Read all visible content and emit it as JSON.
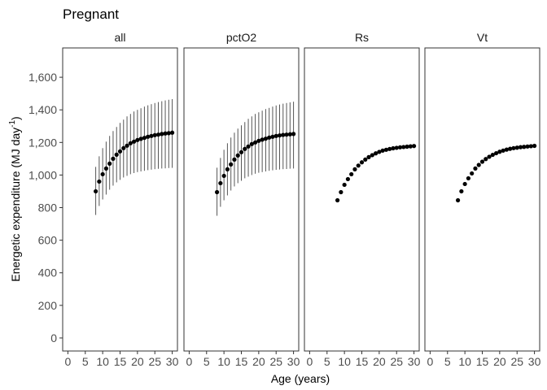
{
  "chart_data": {
    "type": "scatter",
    "title": "Pregnant",
    "xlabel": "Age (years)",
    "ylabel_main": "Energetic expenditure (MJ day",
    "ylabel_sup": "-1",
    "ylabel_close": ")",
    "xlim": [
      -1.5,
      31.5
    ],
    "ylim": [
      -80,
      1780
    ],
    "x_ticks": [
      0,
      5,
      10,
      15,
      20,
      25,
      30
    ],
    "x_tick_labels": [
      "0",
      "5",
      "10",
      "15",
      "20",
      "25",
      "30"
    ],
    "y_ticks": [
      0,
      200,
      400,
      600,
      800,
      1000,
      1200,
      1400,
      1600
    ],
    "y_tick_labels": [
      "0",
      "200",
      "400",
      "600",
      "800",
      "1,000",
      "1,200",
      "1,400",
      "1,600"
    ],
    "grid": false,
    "colors": {
      "point": "#000000",
      "errorbar": "#555555",
      "panel_border": "#333333"
    },
    "panels": [
      {
        "label": "all",
        "x": [
          8,
          9,
          10,
          11,
          12,
          13,
          14,
          15,
          16,
          17,
          18,
          19,
          20,
          21,
          22,
          23,
          24,
          25,
          26,
          27,
          28,
          29,
          30
        ],
        "y": [
          900,
          960,
          1005,
          1040,
          1070,
          1100,
          1125,
          1145,
          1165,
          1180,
          1195,
          1205,
          1215,
          1222,
          1228,
          1235,
          1240,
          1245,
          1248,
          1252,
          1255,
          1257,
          1260
        ],
        "lower": [
          755,
          810,
          850,
          880,
          910,
          935,
          955,
          970,
          985,
          995,
          1005,
          1012,
          1018,
          1022,
          1026,
          1030,
          1033,
          1036,
          1038,
          1040,
          1041,
          1043,
          1044
        ],
        "upper": [
          1050,
          1115,
          1165,
          1205,
          1240,
          1270,
          1295,
          1320,
          1340,
          1360,
          1375,
          1390,
          1400,
          1410,
          1420,
          1428,
          1435,
          1442,
          1448,
          1453,
          1458,
          1462,
          1466
        ]
      },
      {
        "label": "pctO2",
        "x": [
          8,
          9,
          10,
          11,
          12,
          13,
          14,
          15,
          16,
          17,
          18,
          19,
          20,
          21,
          22,
          23,
          24,
          25,
          26,
          27,
          28,
          29,
          30
        ],
        "y": [
          895,
          950,
          995,
          1035,
          1065,
          1095,
          1120,
          1140,
          1160,
          1175,
          1190,
          1200,
          1210,
          1217,
          1223,
          1230,
          1235,
          1240,
          1243,
          1246,
          1248,
          1250,
          1252
        ],
        "lower": [
          750,
          805,
          845,
          875,
          905,
          930,
          950,
          965,
          980,
          990,
          1000,
          1008,
          1014,
          1018,
          1022,
          1026,
          1029,
          1032,
          1034,
          1036,
          1037,
          1039,
          1040
        ],
        "upper": [
          1045,
          1105,
          1155,
          1195,
          1230,
          1260,
          1285,
          1305,
          1325,
          1345,
          1360,
          1375,
          1385,
          1395,
          1405,
          1412,
          1420,
          1427,
          1433,
          1438,
          1442,
          1446,
          1450
        ]
      },
      {
        "label": "Rs",
        "x": [
          8,
          9,
          10,
          11,
          12,
          13,
          14,
          15,
          16,
          17,
          18,
          19,
          20,
          21,
          22,
          23,
          24,
          25,
          26,
          27,
          28,
          29,
          30
        ],
        "y": [
          845,
          895,
          940,
          975,
          1005,
          1035,
          1058,
          1078,
          1095,
          1110,
          1122,
          1133,
          1142,
          1150,
          1155,
          1160,
          1164,
          1167,
          1170,
          1172,
          1174,
          1176,
          1178
        ]
      },
      {
        "label": "Vt",
        "x": [
          8,
          9,
          10,
          11,
          12,
          13,
          14,
          15,
          16,
          17,
          18,
          19,
          20,
          21,
          22,
          23,
          24,
          25,
          26,
          27,
          28,
          29,
          30
        ],
        "y": [
          845,
          900,
          945,
          980,
          1010,
          1040,
          1062,
          1082,
          1098,
          1112,
          1124,
          1134,
          1143,
          1150,
          1156,
          1161,
          1165,
          1168,
          1171,
          1173,
          1175,
          1177,
          1179
        ]
      }
    ]
  }
}
